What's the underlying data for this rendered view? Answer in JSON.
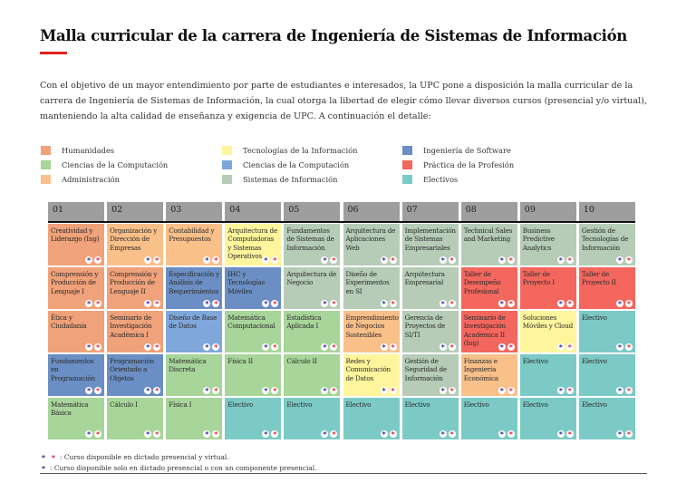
{
  "title": "Malla curricular de la carrera de Ingeniería de Sistemas de Información",
  "intro": "Con el objetivo de un mayor entendimiento por parte de estudiantes e interesados, la UPC pone a disposición la malla curricular de la carrera de Ingeniería de Sistemas de Información, la cual otorga la libertad de elegir cómo llevar diversos cursos (presencial y/o virtual), manteniendo la alta calidad de enseñanza y exigencia de UPC. A continuación el detalle:",
  "colors": {
    "hum": "#f0a27a",
    "cc": "#a8d59a",
    "adm": "#f9c08a",
    "ti": "#fff59d",
    "is": "#6b8fc4",
    "ccb": "#80a7db",
    "si": "#b6ccb7",
    "pp": "#f4675e",
    "el": "#7ccac6",
    "header": "#9e9e9e",
    "accent": "#e3231a"
  },
  "legend": [
    [
      {
        "key": "hum",
        "label": "Humanidades"
      },
      {
        "key": "cc",
        "label": "Ciencias de la Computación"
      },
      {
        "key": "adm",
        "label": "Administración"
      }
    ],
    [
      {
        "key": "ti",
        "label": "Tecnologías de la Información"
      },
      {
        "key": "ccb",
        "label": "Ciencias de la Computación"
      },
      {
        "key": "si",
        "label": "Sistemas de Información"
      }
    ],
    [
      {
        "key": "is",
        "label": "Ingeniería de Software"
      },
      {
        "key": "pp",
        "label": "Práctica de la Profesión"
      },
      {
        "key": "el",
        "label": "Electivos"
      }
    ]
  ],
  "cycles": [
    "01",
    "02",
    "03",
    "04",
    "05",
    "06",
    "07",
    "08",
    "09",
    "10"
  ],
  "rows": [
    [
      [
        "Creatividad y Liderazgo (Ing)",
        "hum"
      ],
      [
        "Organización y Dirección de Empresas",
        "adm"
      ],
      [
        "Contabilidad y Presupuestos",
        "adm"
      ],
      [
        "Arquitectura de Computadoras y Sistemas Operativos",
        "ti"
      ],
      [
        "Fundamentos de Sistemas de Información",
        "si"
      ],
      [
        "Arquitectura de Aplicaciones Web",
        "si"
      ],
      [
        "Implementación de Sistemas Empresariales",
        "si"
      ],
      [
        "Technical Sales and Marketing",
        "si"
      ],
      [
        "Business Predictive Analytics",
        "si"
      ],
      [
        "Gestión de Tecnologías de Información",
        "si"
      ]
    ],
    [
      [
        "Comprensión y Producción de Lenguaje I",
        "hum"
      ],
      [
        "Comprensión y Producción de Lenguaje II",
        "hum"
      ],
      [
        "Especificación y Análisis de Requerimientos",
        "is"
      ],
      [
        "IHC y Tecnologías Móviles",
        "is"
      ],
      [
        "Arquitectura de Negocio",
        "si"
      ],
      [
        "Diseño de Experimentos en SI",
        "si"
      ],
      [
        "Arquitectura Empresarial",
        "si"
      ],
      [
        "Taller de Desempeño Profesional",
        "pp"
      ],
      [
        "Taller de Proyecto I",
        "pp"
      ],
      [
        "Taller de Proyecto II",
        "pp"
      ]
    ],
    [
      [
        "Ética y Ciudadanía",
        "hum"
      ],
      [
        "Seminario de Investigación Académica I",
        "hum"
      ],
      [
        "Diseño de Base de Datos",
        "ccb"
      ],
      [
        "Matemática Computacional",
        "cc"
      ],
      [
        "Estadística Aplicada I",
        "cc"
      ],
      [
        "Emprendimiento de Negocios Sostenibles",
        "adm"
      ],
      [
        "Gerencia de Proyectos de SI/TI",
        "si"
      ],
      [
        "Seminario de Investigación Académica II (Ing)",
        "pp"
      ],
      [
        "Soluciones Móviles y Cloud",
        "ti"
      ],
      [
        "Electivo",
        "el"
      ]
    ],
    [
      [
        "Fundamentos en Programación",
        "is"
      ],
      [
        "Programación Orientado a Objetos",
        "is"
      ],
      [
        "Matemática Discreta",
        "cc"
      ],
      [
        "Física II",
        "cc"
      ],
      [
        "Cálculo II",
        "cc"
      ],
      [
        "Redes y Comunicación de Datos",
        "ti"
      ],
      [
        "Gestión de Seguridad de Información",
        "si"
      ],
      [
        "Finanzas e Ingeniería Económica",
        "adm"
      ],
      [
        "Electivo",
        "el"
      ],
      [
        "Electivo",
        "el"
      ]
    ],
    [
      [
        "Matemática Básica",
        "cc"
      ],
      [
        "Cálculo I",
        "cc"
      ],
      [
        "Física I",
        "cc"
      ],
      [
        "Electivo",
        "el"
      ],
      [
        "Electivo",
        "el"
      ],
      [
        "Electivo",
        "el"
      ],
      [
        "Electivo",
        "el"
      ],
      [
        "Electivo",
        "el"
      ],
      [
        "Electivo",
        "el"
      ],
      [
        "Electivo",
        "el"
      ]
    ]
  ],
  "footnotes": {
    "both": ": Curso disponible en dictado presencial y virtual.",
    "one": ": Curso disponible solo en dictado presencial o con un componente presencial."
  }
}
